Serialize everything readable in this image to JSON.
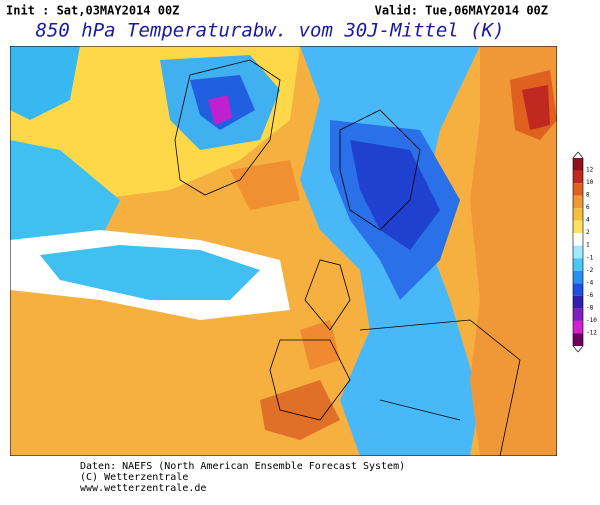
{
  "header": {
    "init": "Init : Sat,03MAY2014 00Z",
    "valid": "Valid: Tue,06MAY2014 00Z",
    "title": "850 hPa Temperaturabw. vom 30J-Mittel (K)"
  },
  "colorbar": {
    "labels": [
      12,
      10,
      8,
      6,
      4,
      2,
      1,
      -1,
      -2,
      -4,
      -6,
      -8,
      -10,
      -12
    ]
  },
  "footer": {
    "lines": [
      "Daten: NAEFS (North American Ensemble Forecast System)",
      "(C) Wetterzentrale",
      "www.wetterzentrale.de"
    ]
  }
}
